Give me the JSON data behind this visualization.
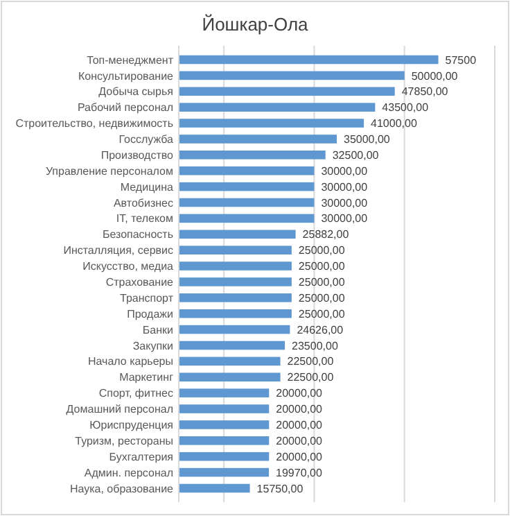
{
  "chart_data": {
    "type": "bar",
    "orientation": "horizontal",
    "title": "Йошкар-Ола",
    "categories": [
      "Топ-менеджмент",
      "Консультирование",
      "Добыча сырья",
      "Рабочий персонал",
      "Строительство, недвижимость",
      "Госслужба",
      "Производство",
      "Управление персоналом",
      "Медицина",
      "Автобизнес",
      "IT, телеком",
      "Безопасность",
      "Инсталляция, сервис",
      "Искусство, медиа",
      "Страхование",
      "Транспорт",
      "Продажи",
      "Банки",
      "Закупки",
      "Начало карьеры",
      "Маркетинг",
      "Спорт, фитнес",
      "Домашний персонал",
      "Юриспруденция",
      "Туризм, рестораны",
      "Бухгалтерия",
      "Админ. персонал",
      "Наука, образование"
    ],
    "values": [
      57500,
      50000,
      47850,
      43500,
      41000,
      35000,
      32500,
      30000,
      30000,
      30000,
      30000,
      25882,
      25000,
      25000,
      25000,
      25000,
      25000,
      24626,
      23500,
      22500,
      22500,
      20000,
      20000,
      20000,
      20000,
      20000,
      19970,
      15750
    ],
    "value_labels": [
      "57500",
      "50000,00",
      "47850,00",
      "43500,00",
      "41000,00",
      "35000,00",
      "32500,00",
      "30000,00",
      "30000,00",
      "30000,00",
      "30000,00",
      "25882,00",
      "25000,00",
      "25000,00",
      "25000,00",
      "25000,00",
      "25000,00",
      "24626,00",
      "23500,00",
      "22500,00",
      "22500,00",
      "20000,00",
      "20000,00",
      "20000,00",
      "20000,00",
      "20000,00",
      "19970,00",
      "15750,00"
    ],
    "color": "#5f97d0",
    "xlim": [
      0,
      70000
    ],
    "xticks": [
      {
        "value": 0,
        "label": null
      },
      {
        "value": 10000,
        "label": null
      },
      {
        "value": 30000,
        "label": null
      },
      {
        "value": 50000,
        "label": null
      },
      {
        "value": 70000,
        "label": null
      }
    ],
    "tick_labels": "y",
    "grid": "x"
  }
}
